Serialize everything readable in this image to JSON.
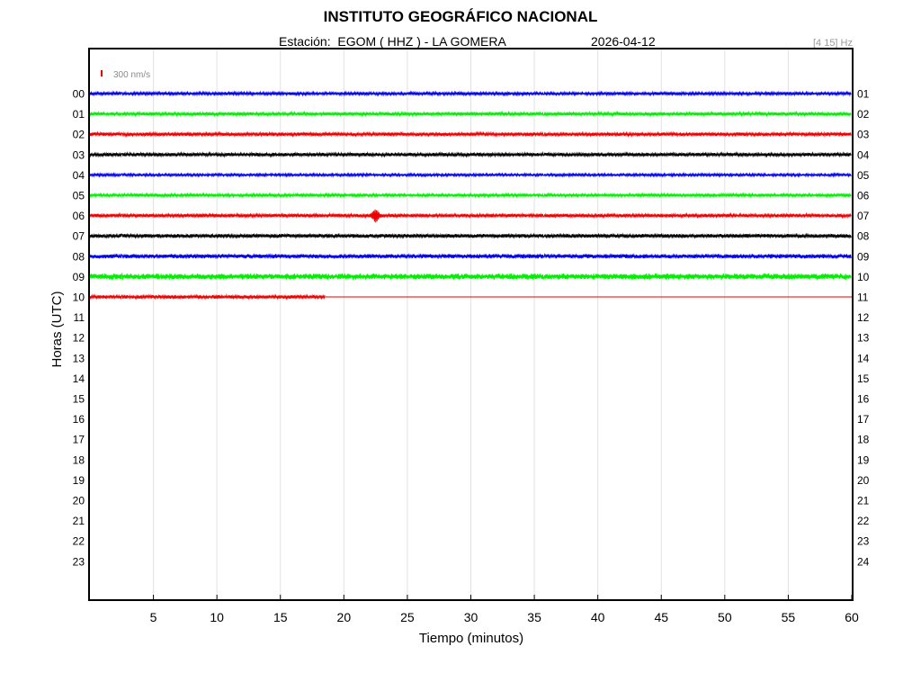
{
  "header": {
    "title": "INSTITUTO GEOGRÁFICO NACIONAL",
    "station_line": "Estación:  EGOM ( HHZ ) - LA GOMERA",
    "date": "2026-04-12",
    "filter": "[4 15] Hz"
  },
  "scale": {
    "label": "300 nm/s",
    "color": "#e00000"
  },
  "chart_data": {
    "type": "line",
    "title": "INSTITUTO GEOGRÁFICO NACIONAL",
    "xlabel": "Tiempo (minutos)",
    "ylabel": "Horas (UTC)",
    "xlim": [
      0,
      60
    ],
    "x_ticks": [
      "5",
      "10",
      "15",
      "20",
      "25",
      "30",
      "35",
      "40",
      "45",
      "50",
      "55",
      "60"
    ],
    "y_ticks_left": [
      "00",
      "01",
      "02",
      "03",
      "04",
      "05",
      "06",
      "07",
      "08",
      "09",
      "10",
      "11",
      "12",
      "13",
      "14",
      "15",
      "16",
      "17",
      "18",
      "19",
      "20",
      "21",
      "22",
      "23"
    ],
    "y_ticks_right": [
      "01",
      "02",
      "03",
      "04",
      "05",
      "06",
      "07",
      "08",
      "09",
      "10",
      "11",
      "12",
      "13",
      "14",
      "15",
      "16",
      "17",
      "18",
      "19",
      "20",
      "21",
      "22",
      "23",
      "24"
    ],
    "grid": "vertical",
    "colors": [
      "#0000ee",
      "#00ee00",
      "#ee0000",
      "#000000"
    ],
    "series": [
      {
        "hour": "00",
        "color": "#0000ee",
        "end_minute": 60,
        "noise": 0.7
      },
      {
        "hour": "01",
        "color": "#00ee00",
        "end_minute": 60,
        "noise": 0.8
      },
      {
        "hour": "02",
        "color": "#ee0000",
        "end_minute": 60,
        "noise": 0.8
      },
      {
        "hour": "03",
        "color": "#000000",
        "end_minute": 60,
        "noise": 0.8
      },
      {
        "hour": "04",
        "color": "#0000ee",
        "end_minute": 60,
        "noise": 0.6
      },
      {
        "hour": "05",
        "color": "#00ee00",
        "end_minute": 60,
        "noise": 0.7
      },
      {
        "hour": "06",
        "color": "#ee0000",
        "end_minute": 60,
        "noise": 0.8,
        "event_minute": 22.5
      },
      {
        "hour": "07",
        "color": "#000000",
        "end_minute": 60,
        "noise": 0.9
      },
      {
        "hour": "08",
        "color": "#0000ee",
        "end_minute": 60,
        "noise": 1.0
      },
      {
        "hour": "09",
        "color": "#00ee00",
        "end_minute": 60,
        "noise": 1.4
      },
      {
        "hour": "10",
        "color": "#ee0000",
        "end_minute": 18.5,
        "noise": 0.8
      }
    ]
  }
}
